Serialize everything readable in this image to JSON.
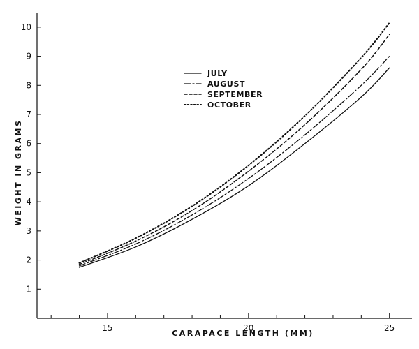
{
  "chart_data": {
    "type": "line",
    "title": "",
    "xlabel": "CARAPACE LENGTH (MM)",
    "ylabel": "WEIGHT IN GRAMS",
    "xlim": [
      12.5,
      25.8
    ],
    "ylim": [
      0,
      10.5
    ],
    "xticks": [
      15,
      20,
      25
    ],
    "yticks": [
      1,
      2,
      3,
      4,
      5,
      6,
      7,
      8,
      9,
      10
    ],
    "grid": false,
    "legend_position": "top-center",
    "x": [
      14,
      16,
      18,
      20,
      22,
      24,
      25
    ],
    "series": [
      {
        "name": "JULY",
        "style": "solid",
        "values": [
          1.75,
          2.45,
          3.4,
          4.55,
          6.0,
          7.6,
          8.6
        ]
      },
      {
        "name": "AUGUST",
        "style": "dashdot",
        "values": [
          1.8,
          2.55,
          3.55,
          4.8,
          6.3,
          8.0,
          9.0
        ]
      },
      {
        "name": "SEPTEMBER",
        "style": "dashed",
        "values": [
          1.85,
          2.65,
          3.7,
          5.05,
          6.65,
          8.55,
          9.75
        ]
      },
      {
        "name": "OCTOBER",
        "style": "dotted",
        "values": [
          1.9,
          2.75,
          3.85,
          5.25,
          6.95,
          8.95,
          10.15
        ]
      }
    ]
  }
}
